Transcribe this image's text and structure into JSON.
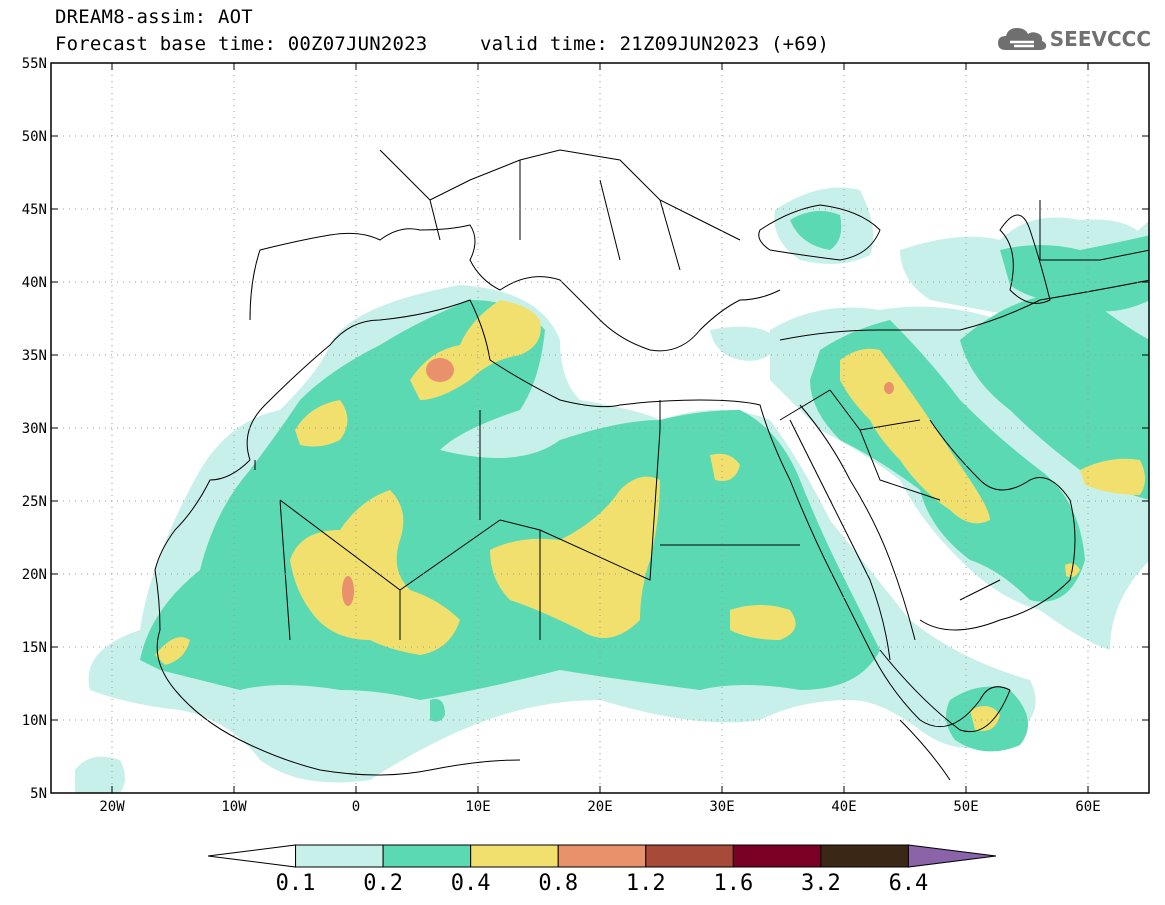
{
  "title": {
    "line1": "DREAM8-assim: AOT",
    "forecast": "Forecast base time: 00Z07JUN2023",
    "valid": "valid time: 21Z09JUN2023 (+69)"
  },
  "logo": {
    "text": "SEEVCCC",
    "icon": "cloud-logo-icon"
  },
  "map": {
    "region": "North Africa, Middle East and Mediterranean",
    "lon_range": [
      -25,
      65
    ],
    "lat_range": [
      5,
      55
    ],
    "lon_ticks": [
      {
        "lon": -20,
        "label": "20W"
      },
      {
        "lon": -10,
        "label": "10W"
      },
      {
        "lon": 0,
        "label": "0"
      },
      {
        "lon": 10,
        "label": "10E"
      },
      {
        "lon": 20,
        "label": "20E"
      },
      {
        "lon": 30,
        "label": "30E"
      },
      {
        "lon": 40,
        "label": "40E"
      },
      {
        "lon": 50,
        "label": "50E"
      },
      {
        "lon": 60,
        "label": "60E"
      }
    ],
    "lat_ticks": [
      {
        "lat": 5,
        "label": "5N"
      },
      {
        "lat": 10,
        "label": "10N"
      },
      {
        "lat": 15,
        "label": "15N"
      },
      {
        "lat": 20,
        "label": "20N"
      },
      {
        "lat": 25,
        "label": "25N"
      },
      {
        "lat": 30,
        "label": "30N"
      },
      {
        "lat": 35,
        "label": "35N"
      },
      {
        "lat": 40,
        "label": "40N"
      },
      {
        "lat": 45,
        "label": "45N"
      },
      {
        "lat": 50,
        "label": "50N"
      },
      {
        "lat": 55,
        "label": "55N"
      }
    ],
    "gridlines": "dotted"
  },
  "colorbar": {
    "thresholds": [
      "0.1",
      "0.2",
      "0.4",
      "0.8",
      "1.2",
      "1.6",
      "3.2",
      "6.4"
    ],
    "colors": [
      "#ffffff",
      "#c8f0ea",
      "#5ad9b2",
      "#f2e06e",
      "#e8916a",
      "#a84a3a",
      "#7a0025",
      "#3b2716",
      "#8a63a8"
    ],
    "extend": "both"
  }
}
